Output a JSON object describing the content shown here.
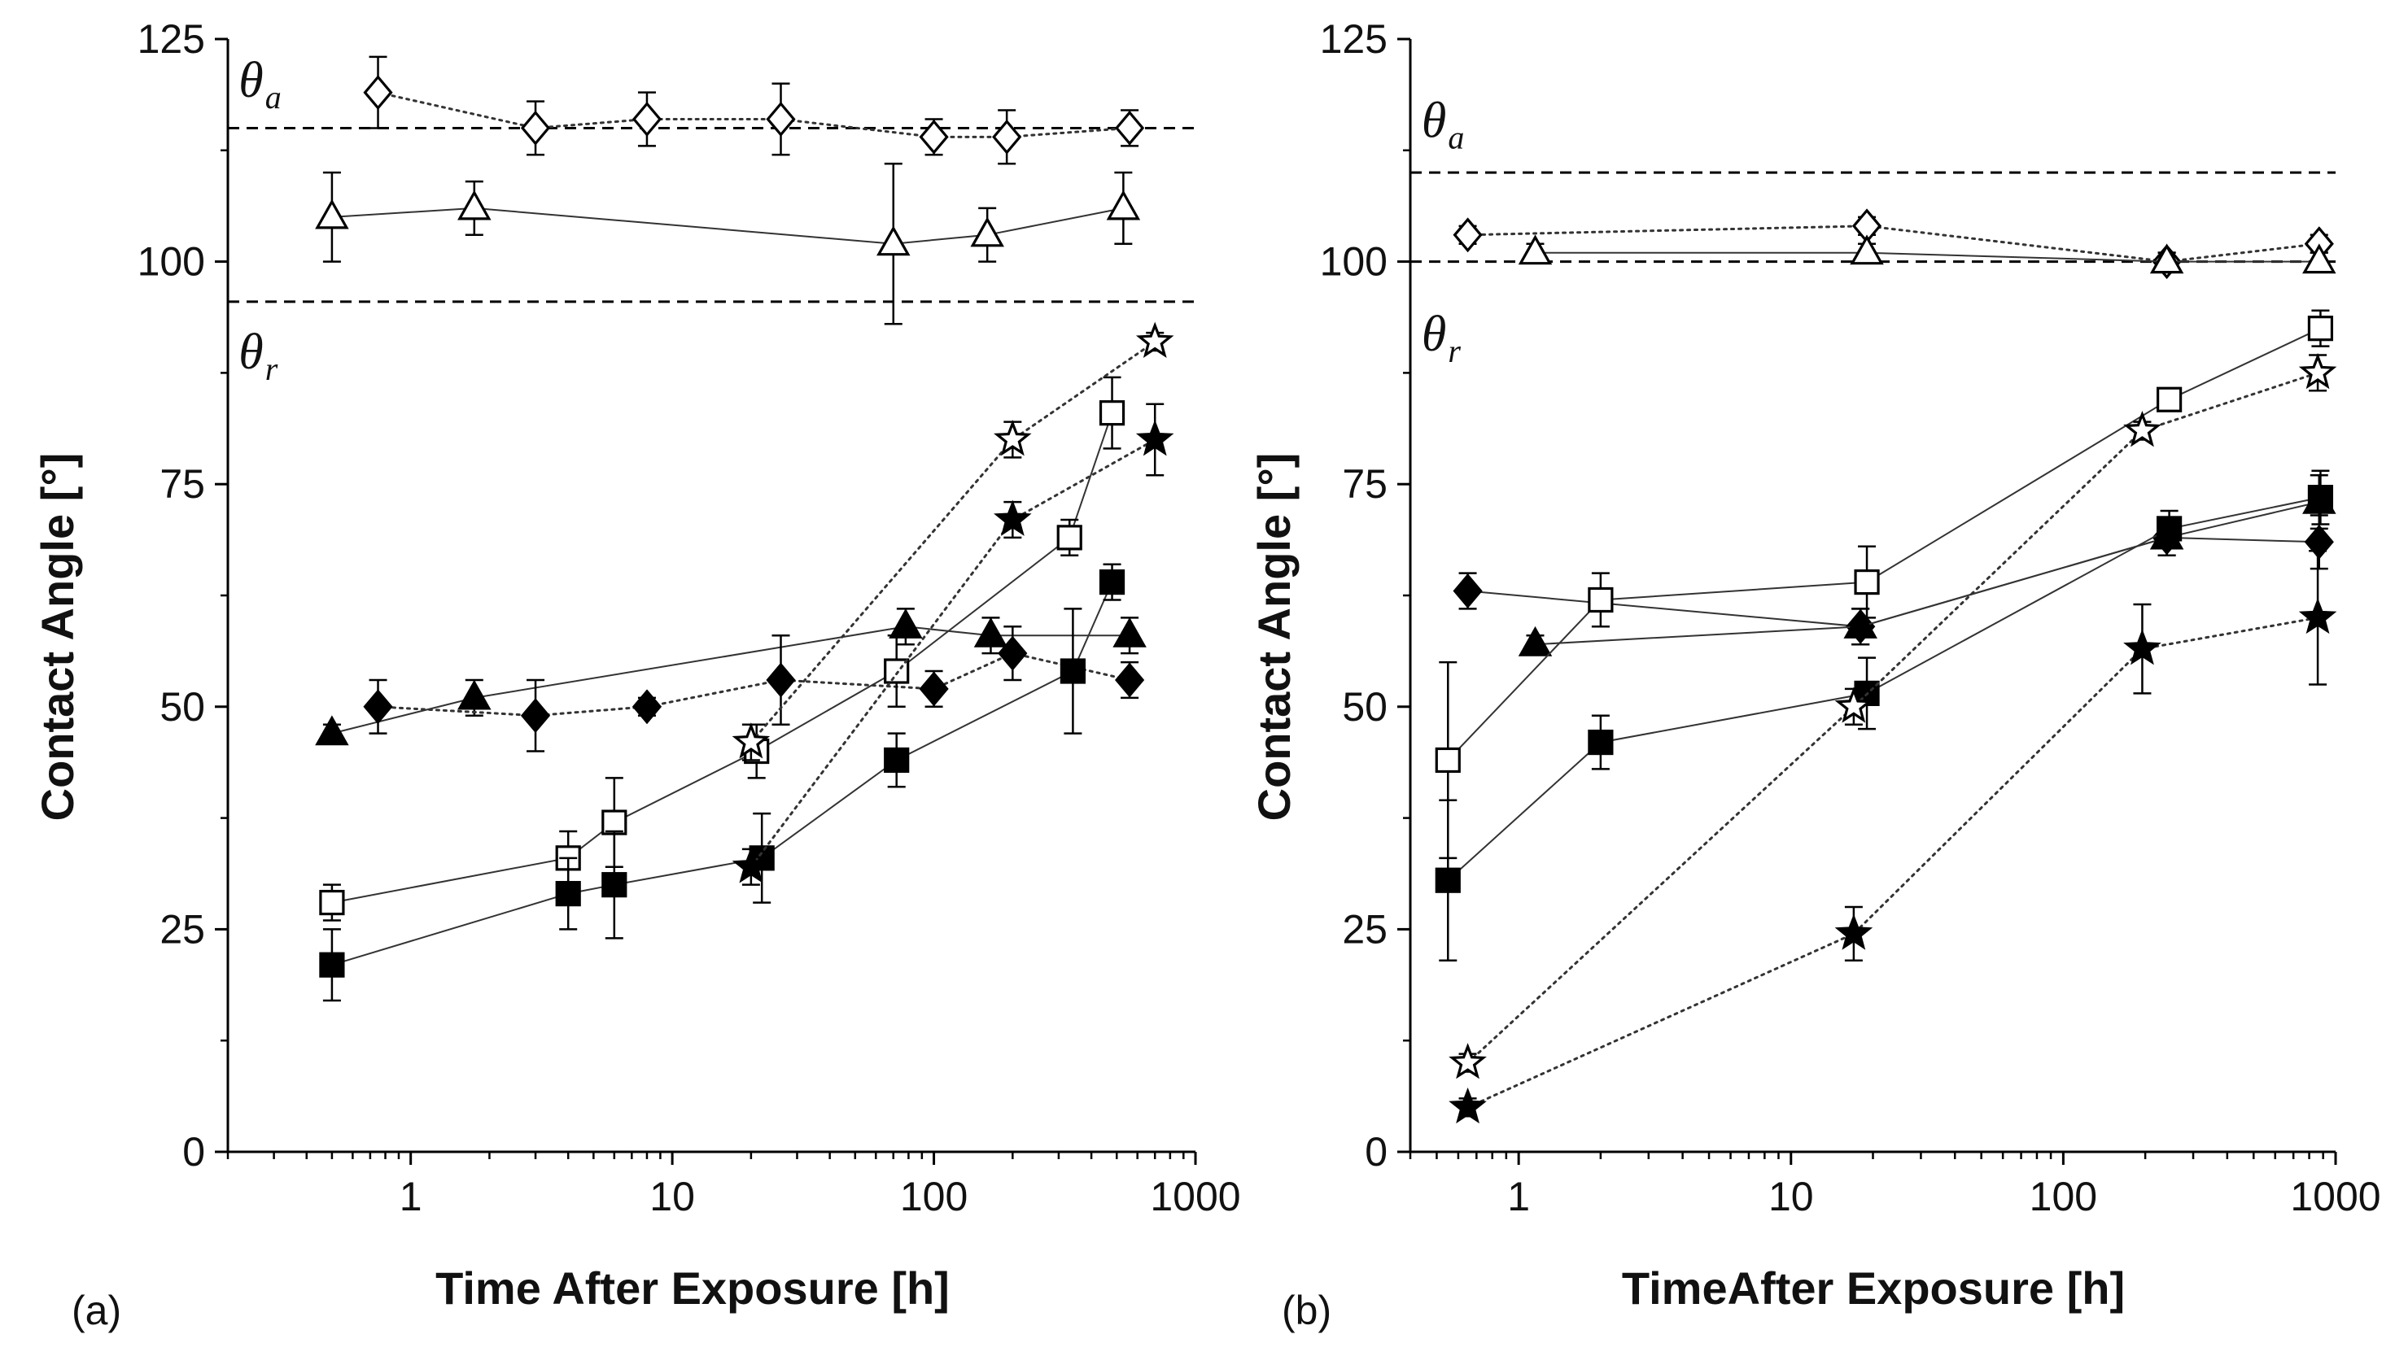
{
  "chart_data": [
    {
      "type": "scatter",
      "panel_label": "(a)",
      "xlabel": "Time After Exposure [h]",
      "ylabel": "Contact Angle [°]",
      "xscale": "log",
      "xlim": [
        0.2,
        1000
      ],
      "ylim": [
        0,
        125
      ],
      "xticks": [
        1,
        10,
        100,
        1000
      ],
      "xtick_labels": [
        "1",
        "10",
        "100",
        "1000"
      ],
      "yticks": [
        0,
        25,
        50,
        75,
        100,
        125
      ],
      "ytick_labels": [
        "0",
        "25",
        "50",
        "75",
        "100",
        "125"
      ],
      "reference_lines": [
        115,
        95.5
      ],
      "annotations": [
        {
          "symbol": "θ",
          "sub": "a",
          "x": 0.22,
          "y": 118.5
        },
        {
          "symbol": "θ",
          "sub": "r",
          "x": 0.22,
          "y": 88
        }
      ],
      "series": [
        {
          "name": "advancing-diamond-open",
          "marker": "diamond",
          "filled": false,
          "line": "dotted",
          "x": [
            0.75,
            3,
            8,
            26,
            100,
            190,
            560
          ],
          "y": [
            119,
            115,
            116,
            116,
            114,
            114,
            115
          ],
          "err": [
            4,
            3,
            3,
            4,
            2,
            3,
            2
          ]
        },
        {
          "name": "advancing-triangle-open",
          "marker": "triangle",
          "filled": false,
          "line": "solid",
          "x": [
            0.5,
            1.75,
            70,
            160,
            530
          ],
          "y": [
            105,
            106,
            102,
            103,
            106
          ],
          "err": [
            5,
            3,
            9,
            3,
            4
          ]
        },
        {
          "name": "receding-triangle-filled",
          "marker": "triangle",
          "filled": true,
          "line": "solid",
          "x": [
            0.5,
            1.75,
            78,
            165,
            560
          ],
          "y": [
            47,
            51,
            59,
            58,
            58
          ],
          "err": [
            1,
            2,
            2,
            2,
            2
          ]
        },
        {
          "name": "receding-diamond-filled",
          "marker": "diamond",
          "filled": true,
          "line": "dotted",
          "x": [
            0.75,
            3,
            8,
            26,
            100,
            200,
            560
          ],
          "y": [
            50,
            49,
            50,
            53,
            52,
            56,
            53
          ],
          "err": [
            3,
            4,
            1,
            5,
            2,
            3,
            2
          ]
        },
        {
          "name": "receding-square-open",
          "marker": "square",
          "filled": false,
          "line": "solid",
          "x": [
            0.5,
            4,
            6,
            21,
            72,
            330,
            480
          ],
          "y": [
            28,
            33,
            37,
            45,
            54,
            69,
            83
          ],
          "err": [
            2,
            3,
            5,
            3,
            4,
            2,
            4
          ]
        },
        {
          "name": "receding-square-filled",
          "marker": "square",
          "filled": true,
          "line": "solid",
          "x": [
            0.5,
            4,
            6,
            22,
            72,
            340,
            480
          ],
          "y": [
            21,
            29,
            30,
            33,
            44,
            54,
            64
          ],
          "err": [
            4,
            4,
            6,
            5,
            3,
            7,
            2
          ]
        },
        {
          "name": "receding-star-open",
          "marker": "star",
          "filled": false,
          "line": "dotted",
          "x": [
            20,
            200,
            700
          ],
          "y": [
            46,
            80,
            91
          ],
          "err": [
            2,
            2,
            1
          ]
        },
        {
          "name": "receding-star-filled",
          "marker": "star",
          "filled": true,
          "line": "dotted",
          "x": [
            20,
            200,
            700
          ],
          "y": [
            32,
            71,
            80
          ],
          "err": [
            2,
            2,
            4
          ]
        }
      ]
    },
    {
      "type": "scatter",
      "panel_label": "(b)",
      "xlabel": "TimeAfter Exposure [h]",
      "ylabel": "Contact Angle [°]",
      "xscale": "log",
      "xlim": [
        0.4,
        1000
      ],
      "ylim": [
        0,
        125
      ],
      "xticks": [
        1,
        10,
        100,
        1000
      ],
      "xtick_labels": [
        "1",
        "10",
        "100",
        "1000"
      ],
      "yticks": [
        0,
        25,
        50,
        75,
        100,
        125
      ],
      "ytick_labels": [
        "0",
        "25",
        "50",
        "75",
        "100",
        "125"
      ],
      "reference_lines": [
        110,
        100
      ],
      "annotations": [
        {
          "symbol": "θ",
          "sub": "a",
          "x": 0.44,
          "y": 114
        },
        {
          "symbol": "θ",
          "sub": "r",
          "x": 0.44,
          "y": 90
        }
      ],
      "series": [
        {
          "name": "advancing-diamond-open",
          "marker": "diamond",
          "filled": false,
          "line": "dotted",
          "x": [
            0.65,
            19,
            240,
            870
          ],
          "y": [
            103,
            104,
            100,
            102
          ],
          "err": [
            1,
            1,
            1,
            1
          ]
        },
        {
          "name": "advancing-triangle-open",
          "marker": "triangle",
          "filled": false,
          "line": "solid",
          "x": [
            1.15,
            19,
            240,
            870
          ],
          "y": [
            101,
            101,
            100,
            100
          ],
          "err": [
            1,
            1,
            1,
            1
          ]
        },
        {
          "name": "receding-diamond-filled",
          "marker": "diamond",
          "filled": true,
          "line": "solid",
          "x": [
            0.65,
            18,
            240,
            870
          ],
          "y": [
            63,
            59,
            69,
            68.5
          ],
          "err": [
            2,
            2,
            2,
            3
          ]
        },
        {
          "name": "receding-triangle-filled",
          "marker": "triangle",
          "filled": true,
          "line": "solid",
          "x": [
            1.15,
            18,
            240,
            870
          ],
          "y": [
            57,
            59,
            69,
            73
          ],
          "err": [
            1,
            2,
            2,
            3
          ]
        },
        {
          "name": "receding-square-open",
          "marker": "square",
          "filled": false,
          "line": "solid",
          "x": [
            0.55,
            2,
            19,
            245,
            880
          ],
          "y": [
            44,
            62,
            64,
            84.5,
            92.5
          ],
          "err": [
            11,
            3,
            4,
            1,
            2
          ]
        },
        {
          "name": "receding-square-filled",
          "marker": "square",
          "filled": true,
          "line": "solid",
          "x": [
            0.55,
            2,
            19,
            245,
            880
          ],
          "y": [
            30.5,
            46,
            51.5,
            70,
            73.5
          ],
          "err": [
            9,
            3,
            4,
            2,
            3
          ]
        },
        {
          "name": "receding-star-open",
          "marker": "star",
          "filled": false,
          "line": "dotted",
          "x": [
            0.65,
            17,
            195,
            860
          ],
          "y": [
            10,
            50,
            81,
            87.5
          ],
          "err": [
            1,
            2,
            1,
            2
          ]
        },
        {
          "name": "receding-star-filled",
          "marker": "star",
          "filled": true,
          "line": "dotted",
          "x": [
            0.65,
            17,
            195,
            860
          ],
          "y": [
            5,
            24.5,
            56.5,
            60
          ],
          "err": [
            1,
            3,
            5,
            7.5
          ]
        }
      ]
    }
  ]
}
